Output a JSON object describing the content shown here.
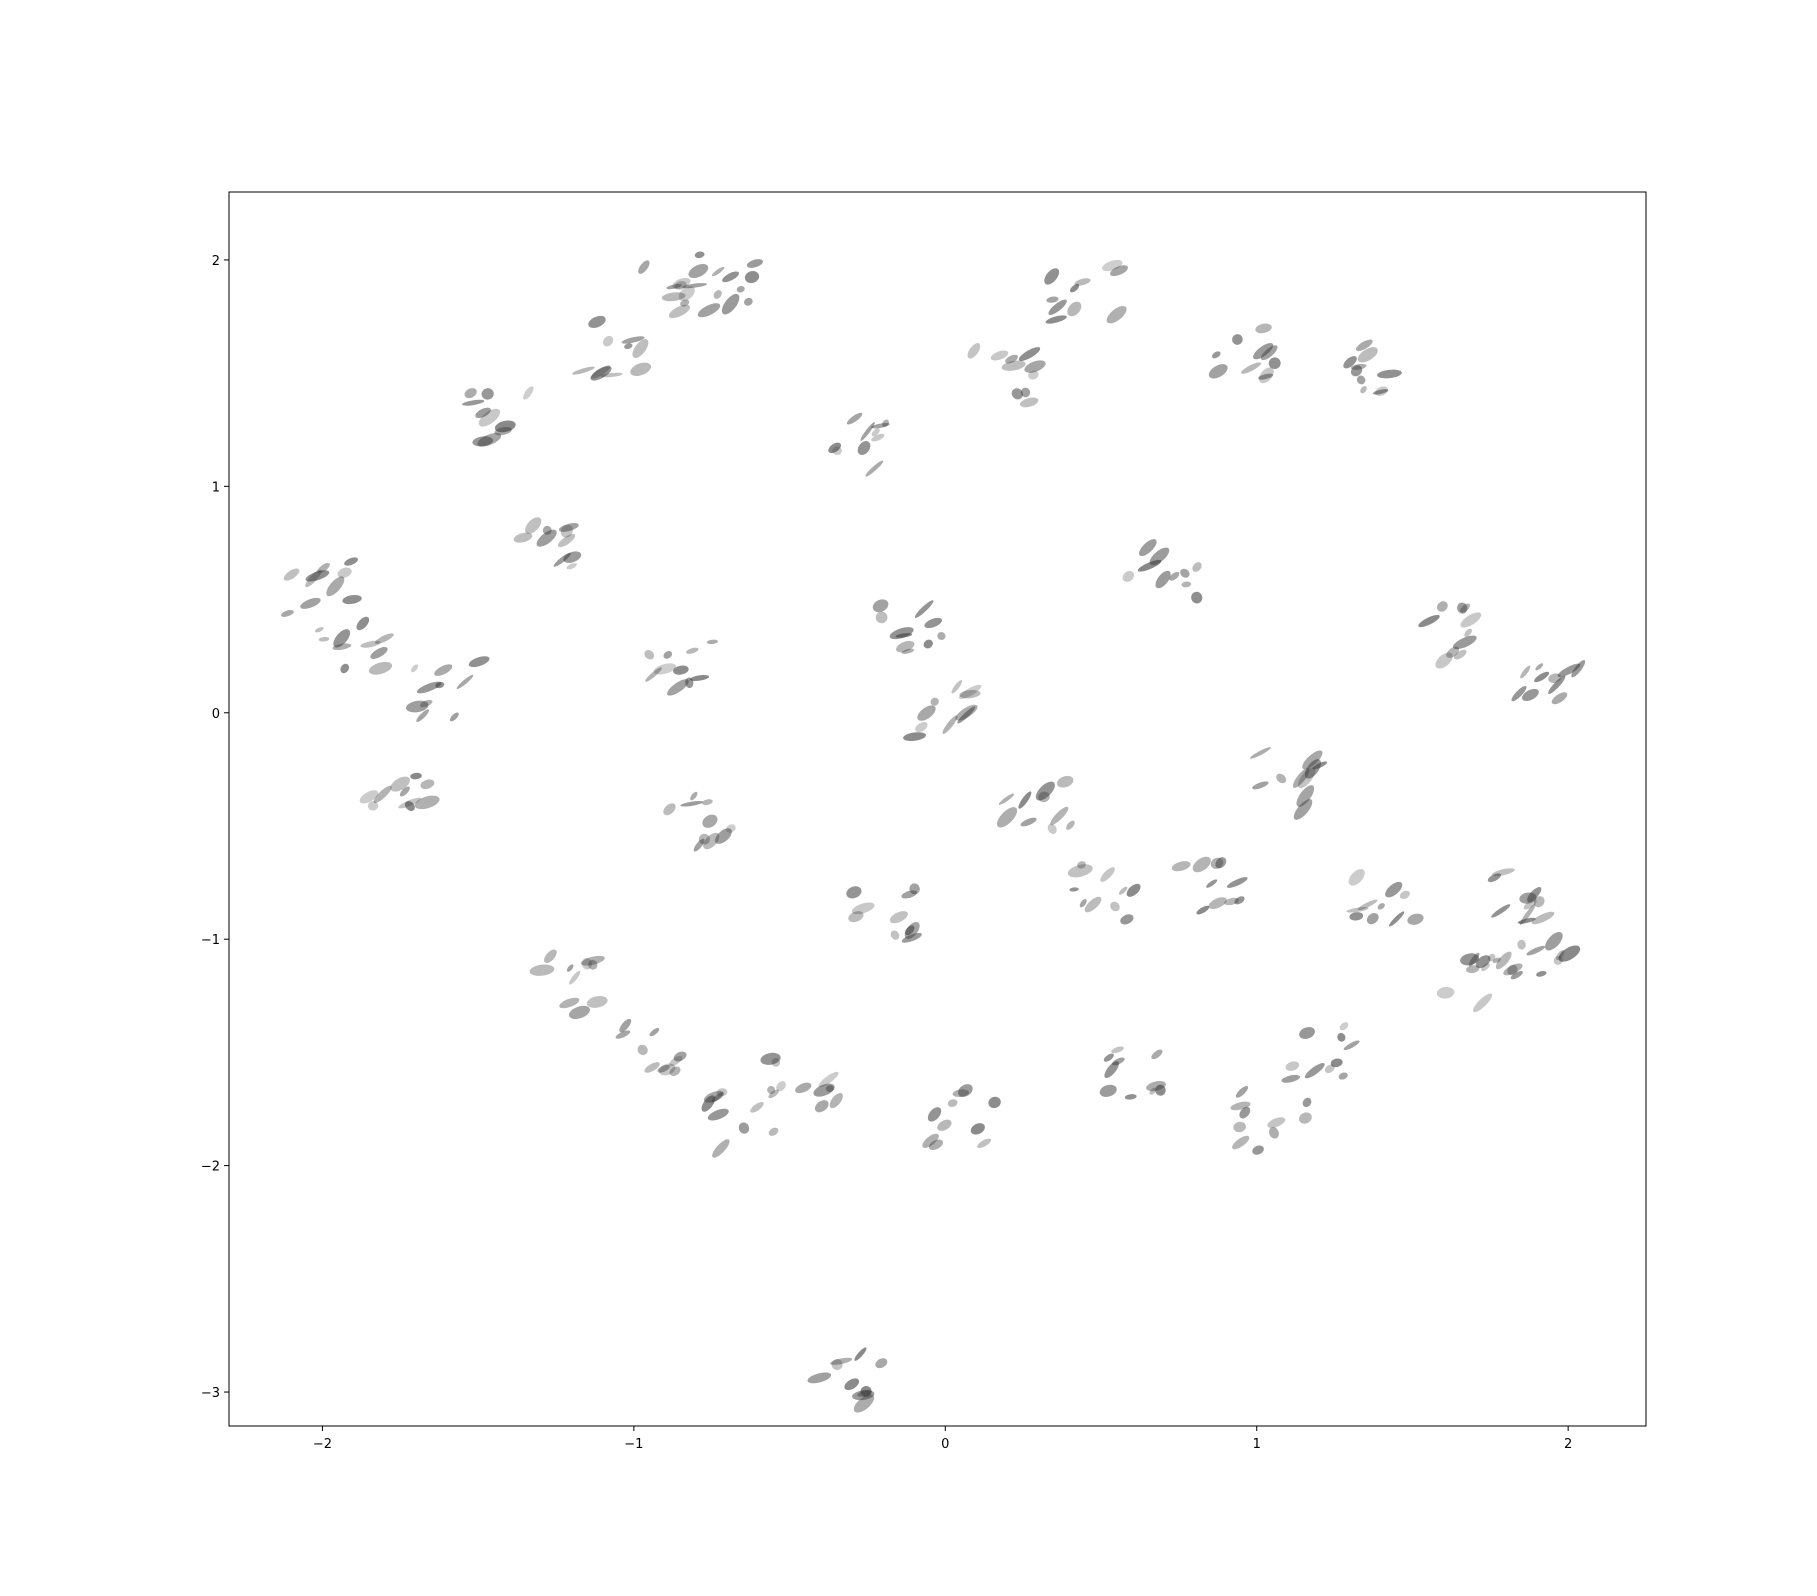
{
  "chart_data": {
    "type": "scatter",
    "title": "",
    "xlabel": "",
    "ylabel": "",
    "xlim": [
      -2.3,
      2.25
    ],
    "ylim": [
      -3.15,
      2.3
    ],
    "xticks": [
      {
        "value": -2,
        "label": "−2"
      },
      {
        "value": -1,
        "label": "−1"
      },
      {
        "value": 0,
        "label": "0"
      },
      {
        "value": 1,
        "label": "1"
      },
      {
        "value": 2,
        "label": "2"
      }
    ],
    "yticks": [
      {
        "value": 2,
        "label": "2"
      },
      {
        "value": 1,
        "label": "1"
      },
      {
        "value": 0,
        "label": "0"
      },
      {
        "value": -1,
        "label": "−1"
      },
      {
        "value": -2,
        "label": "−2"
      },
      {
        "value": -3,
        "label": "−3"
      }
    ],
    "grid": false,
    "legend": "none",
    "marker_color": "#3a3a3a",
    "points": [
      {
        "x": -2.0,
        "y": 0.55
      },
      {
        "x": -1.9,
        "y": 0.3
      },
      {
        "x": -1.75,
        "y": -0.3
      },
      {
        "x": -1.6,
        "y": 0.1
      },
      {
        "x": -1.45,
        "y": 1.3
      },
      {
        "x": -1.3,
        "y": 0.7
      },
      {
        "x": -1.2,
        "y": -1.2
      },
      {
        "x": -1.05,
        "y": 1.6
      },
      {
        "x": -0.95,
        "y": -1.5
      },
      {
        "x": -0.9,
        "y": 1.9
      },
      {
        "x": -0.85,
        "y": 0.2
      },
      {
        "x": -0.8,
        "y": -0.5
      },
      {
        "x": -0.7,
        "y": 1.9
      },
      {
        "x": -0.65,
        "y": -1.8
      },
      {
        "x": -0.45,
        "y": -1.65
      },
      {
        "x": -0.3,
        "y": 1.2
      },
      {
        "x": -0.2,
        "y": -0.9
      },
      {
        "x": -0.1,
        "y": 0.4
      },
      {
        "x": 0.0,
        "y": 0.0
      },
      {
        "x": 0.05,
        "y": -1.8
      },
      {
        "x": 0.2,
        "y": 1.5
      },
      {
        "x": 0.3,
        "y": -0.4
      },
      {
        "x": 0.45,
        "y": 1.85
      },
      {
        "x": 0.5,
        "y": -0.8
      },
      {
        "x": 0.6,
        "y": -1.6
      },
      {
        "x": 0.7,
        "y": 0.6
      },
      {
        "x": 0.85,
        "y": -0.75
      },
      {
        "x": 0.95,
        "y": 1.6
      },
      {
        "x": 1.1,
        "y": -0.3
      },
      {
        "x": 1.2,
        "y": -1.5
      },
      {
        "x": 1.35,
        "y": 1.5
      },
      {
        "x": 1.4,
        "y": -0.8
      },
      {
        "x": 1.6,
        "y": 0.35
      },
      {
        "x": 1.7,
        "y": -1.2
      },
      {
        "x": 1.85,
        "y": -0.8
      },
      {
        "x": 1.9,
        "y": -1.1
      },
      {
        "x": 1.95,
        "y": 0.1
      },
      {
        "x": 1.05,
        "y": -1.8
      },
      {
        "x": -0.3,
        "y": -2.95
      }
    ]
  }
}
